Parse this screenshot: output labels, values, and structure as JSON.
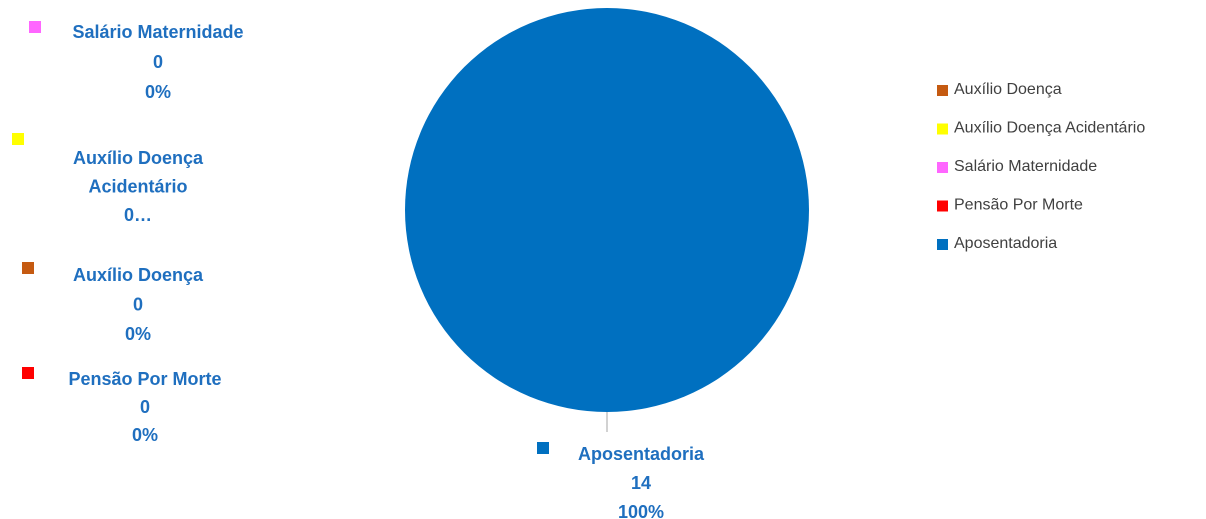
{
  "chart_data": {
    "type": "pie",
    "title": "",
    "categories": [
      "Auxílio Doença",
      "Auxílio Doença Acidentário",
      "Salário Maternidade",
      "Pensão Por Morte",
      "Aposentadoria"
    ],
    "values": [
      0,
      0,
      0,
      0,
      14
    ],
    "percent_labels": [
      "0%",
      "0…",
      "0%",
      "0%",
      "100%"
    ],
    "colors": [
      "#C55A11",
      "#FFFF00",
      "#FF66FF",
      "#FF0000",
      "#0070C0"
    ],
    "legend_position": "right",
    "data_labels": [
      {
        "lines": [
          "Salário Maternidade",
          "0",
          "0%"
        ],
        "category": "Salário Maternidade"
      },
      {
        "lines": [
          "Auxílio Doença",
          "Acidentário",
          "0…"
        ],
        "category": "Auxílio Doença Acidentário"
      },
      {
        "lines": [
          "Auxílio Doença",
          "0",
          "0%"
        ],
        "category": "Auxílio Doença"
      },
      {
        "lines": [
          "Pensão Por Morte",
          "0",
          "0%"
        ],
        "category": "Pensão Por Morte"
      },
      {
        "lines": [
          "Aposentadoria",
          "14",
          "100%"
        ],
        "category": "Aposentadoria"
      }
    ]
  }
}
